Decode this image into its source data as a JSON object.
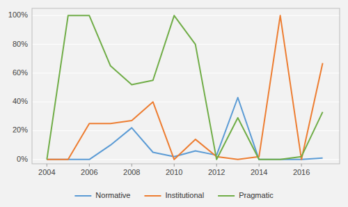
{
  "chart_data": {
    "type": "line",
    "x": [
      2004,
      2005,
      2006,
      2007,
      2008,
      2009,
      2010,
      2011,
      2012,
      2013,
      2014,
      2015,
      2016,
      2017
    ],
    "series": [
      {
        "name": "Normative",
        "color": "#5b9bd5",
        "values": [
          0,
          0,
          0,
          10,
          22,
          5,
          2,
          6,
          3,
          43,
          0,
          0,
          0,
          1
        ]
      },
      {
        "name": "Institutional",
        "color": "#ed7d31",
        "values": [
          0,
          0,
          25,
          25,
          27,
          40,
          0,
          14,
          2,
          0,
          2,
          100,
          0,
          67
        ]
      },
      {
        "name": "Pragmatic",
        "color": "#70ad47",
        "values": [
          0,
          100,
          100,
          65,
          52,
          55,
          100,
          80,
          0,
          29,
          0,
          0,
          2,
          33
        ]
      }
    ],
    "xlim": [
      2003.3,
      2017.8
    ],
    "xticks": [
      2004,
      2006,
      2008,
      2010,
      2012,
      2014,
      2016
    ],
    "ylim": [
      -3,
      105
    ],
    "yticks": [
      {
        "value": 0,
        "label": "0%"
      },
      {
        "value": 20,
        "label": "20%"
      },
      {
        "value": 40,
        "label": "40%"
      },
      {
        "value": 60,
        "label": "60%"
      },
      {
        "value": 80,
        "label": "80%"
      },
      {
        "value": 100,
        "label": "100%"
      }
    ],
    "grid": true,
    "legend": "bottom"
  }
}
